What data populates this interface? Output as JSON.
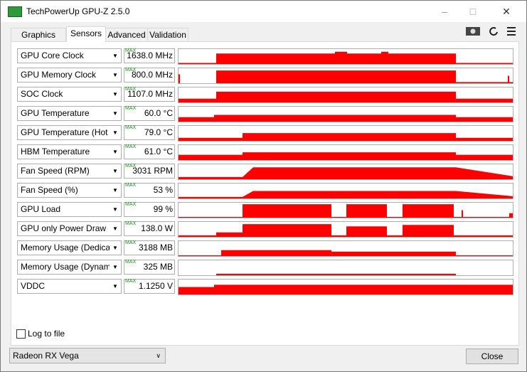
{
  "window": {
    "title": "TechPowerUp GPU-Z 2.5.0"
  },
  "tabs": [
    "Graphics Card",
    "Sensors",
    "Advanced",
    "Validation"
  ],
  "max_label": "MAX",
  "sensors": [
    {
      "name": "GPU Core Clock",
      "value": "1638.0 MHz"
    },
    {
      "name": "GPU Memory Clock",
      "value": "800.0 MHz"
    },
    {
      "name": "SOC Clock",
      "value": "1107.0 MHz"
    },
    {
      "name": "GPU Temperature",
      "value": "60.0 °C"
    },
    {
      "name": "GPU Temperature (Hot Spot)",
      "value": "79.0 °C"
    },
    {
      "name": "HBM Temperature",
      "value": "61.0 °C"
    },
    {
      "name": "Fan Speed (RPM)",
      "value": "3031 RPM"
    },
    {
      "name": "Fan Speed (%)",
      "value": "53 %"
    },
    {
      "name": "GPU Load",
      "value": "99 %"
    },
    {
      "name": "GPU only Power Draw",
      "value": "138.0 W"
    },
    {
      "name": "Memory Usage (Dedicated)",
      "value": "3188 MB"
    },
    {
      "name": "Memory Usage (Dynamic)",
      "value": "325 MB"
    },
    {
      "name": "VDDC",
      "value": "1.1250 V"
    }
  ],
  "log_to_file": "Log to file",
  "gpu_select": "Radeon RX Vega",
  "close": "Close"
}
